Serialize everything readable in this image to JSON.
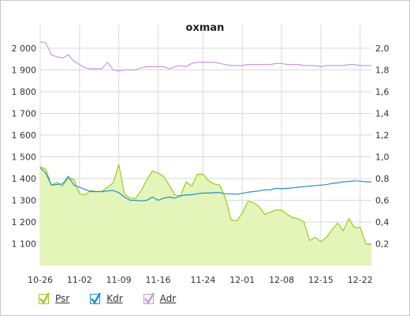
{
  "chart_data": {
    "type": "area",
    "title": "oxman",
    "x_start_date": "2022-10-26",
    "xlim": [
      "2022-10-26",
      "2022-12-24"
    ],
    "x_tick_labels": [
      "10-26",
      "11-02",
      "11-09",
      "11-16",
      "11-24",
      "12-01",
      "12-08",
      "12-15",
      "12-22"
    ],
    "y_left_tick_labels": [
      "1 100",
      "1 200",
      "1 300",
      "1 400",
      "1 500",
      "1 600",
      "1 700",
      "1 800",
      "1 900",
      "2 000"
    ],
    "y_right_tick_labels": [
      "0,2",
      "0,4",
      "0,6",
      "0,8",
      "1,0",
      "1,2",
      "1,4",
      "1,6",
      "1,8",
      "2,0"
    ],
    "ylim_left": [
      1000,
      2000
    ],
    "ylim_right": [
      0.0,
      2.0
    ],
    "grid": true,
    "legend_position": "bottom-left",
    "series": [
      {
        "name": "Psr",
        "axis": "left",
        "style": "area",
        "color": "#9acd1e",
        "fill": "#e3f5b8",
        "values": [
          1455,
          1443,
          1370,
          1383,
          1365,
          1403,
          1395,
          1330,
          1325,
          1345,
          1340,
          1340,
          1360,
          1380,
          1465,
          1330,
          1310,
          1310,
          1345,
          1395,
          1435,
          1425,
          1410,
          1370,
          1325,
          1320,
          1385,
          1365,
          1420,
          1420,
          1390,
          1375,
          1370,
          1310,
          1210,
          1205,
          1240,
          1295,
          1290,
          1270,
          1235,
          1245,
          1255,
          1255,
          1235,
          1220,
          1215,
          1200,
          1115,
          1130,
          1110,
          1130,
          1165,
          1195,
          1160,
          1215,
          1175,
          1175,
          1100,
          1095
        ]
      },
      {
        "name": "Kdr",
        "axis": "left",
        "style": "line",
        "color": "#1f8fd1",
        "values": [
          1450,
          1425,
          1370,
          1373,
          1375,
          1410,
          1370,
          1360,
          1350,
          1340,
          1340,
          1340,
          1343,
          1345,
          1335,
          1315,
          1300,
          1300,
          1297,
          1300,
          1315,
          1300,
          1310,
          1315,
          1310,
          1320,
          1325,
          1325,
          1330,
          1333,
          1333,
          1335,
          1335,
          1330,
          1330,
          1328,
          1332,
          1337,
          1340,
          1343,
          1348,
          1348,
          1355,
          1353,
          1355,
          1357,
          1360,
          1363,
          1365,
          1368,
          1370,
          1372,
          1378,
          1380,
          1385,
          1387,
          1390,
          1388,
          1385,
          1385
        ]
      },
      {
        "name": "Adr",
        "axis": "right",
        "style": "line",
        "color": "#c99ad6",
        "values": [
          2.06,
          2.05,
          1.94,
          1.92,
          1.91,
          1.94,
          1.88,
          1.85,
          1.82,
          1.81,
          1.81,
          1.81,
          1.87,
          1.8,
          1.79,
          1.8,
          1.8,
          1.8,
          1.82,
          1.83,
          1.83,
          1.83,
          1.83,
          1.81,
          1.83,
          1.84,
          1.83,
          1.86,
          1.87,
          1.87,
          1.87,
          1.87,
          1.86,
          1.85,
          1.84,
          1.84,
          1.84,
          1.85,
          1.85,
          1.85,
          1.85,
          1.85,
          1.86,
          1.86,
          1.85,
          1.85,
          1.85,
          1.84,
          1.84,
          1.84,
          1.83,
          1.84,
          1.84,
          1.84,
          1.84,
          1.85,
          1.85,
          1.84,
          1.84,
          1.84
        ]
      }
    ]
  }
}
